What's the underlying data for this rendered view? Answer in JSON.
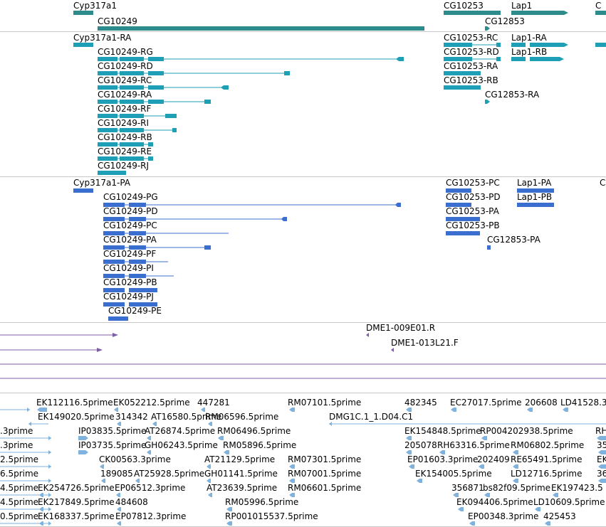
{
  "colors": {
    "gene": "#2e8b8b",
    "transcript": "#1f9fb5",
    "protein": "#3a6fd0",
    "clone": "#7e5ea6",
    "est": "#7fb2dc",
    "separator": "#c8c8c8"
  },
  "genes": [
    {
      "name": "Cyp317a1"
    },
    {
      "name": "CG10249"
    },
    {
      "name": "CG10253"
    },
    {
      "name": "Lap1"
    },
    {
      "name": "CG12853"
    }
  ],
  "transcripts": [
    "Cyp317a1-RA",
    "CG10249-RG",
    "CG10249-RD",
    "CG10249-RC",
    "CG10249-RA",
    "CG10249-RF",
    "CG10249-RI",
    "CG10249-RB",
    "CG10249-RE",
    "CG10249-RJ",
    "CG10253-RC",
    "CG10253-RD",
    "CG10253-RA",
    "CG10253-RB",
    "CG12853-RA",
    "Lap1-RA",
    "Lap1-RB"
  ],
  "proteins": [
    "Cyp317a1-PA",
    "CG10249-PG",
    "CG10249-PD",
    "CG10249-PC",
    "CG10249-PA",
    "CG10249-PF",
    "CG10249-PI",
    "CG10249-PB",
    "CG10249-PJ",
    "CG10249-PE",
    "CG10253-PC",
    "CG10253-PD",
    "CG10253-PA",
    "CG10253-PB",
    "CG12853-PA",
    "Lap1-PA",
    "Lap1-PB"
  ],
  "clones": [
    "DME1-009E01.R",
    "DME1-013L21.F"
  ],
  "est_labels": [
    "EK112116.5prime",
    "EK052212.5prime",
    "447281",
    "RM07101.5prime",
    "482345",
    "EC27017.5prime",
    "206608",
    "LD41528.3",
    "EK149020.5prime",
    "314342",
    "AT16580.5prime",
    "RM06596.5prime",
    "DMG1C.1_1.D04.C1",
    ".3prime",
    "IP03835.5prime",
    "AT26874.5prime",
    "RM06496.5prime",
    "EK154848.5prime",
    "RP004202938.5prime",
    "RH",
    ".3prime",
    "IP03735.5prime",
    "GH06243.5prime",
    "RM05896.5prime",
    "205078",
    "RH63316.5prime",
    "RM06802.5prime",
    "35",
    "2.5prime",
    "CK00563.3prime",
    "AT21129.5prime",
    "RM07301.5prime",
    "EP01603.3prime",
    "202409",
    "RE65491.5prime",
    "EK",
    "6.5prime",
    "189085",
    "AT25928.5prime",
    "GH01141.5prime",
    "RM07001.5prime",
    "EK154005.5prime",
    "LD12716.5prime",
    "36",
    "4.5prime",
    "EK254726.5prime",
    "EP06512.3prime",
    "AT23639.5prime",
    "RM06601.5prime",
    "356871",
    "bs82f09.5prime",
    "EK197423.5",
    "4.5prime",
    "EK217849.5prime",
    "484608",
    "RM05996.5prime",
    "EK094406.5prime",
    "LD10609.5prime",
    "0.5prime",
    "EK168337.5prime",
    "EP07812.3prime",
    "RP001015537.5prime",
    "EP00348.3prime",
    "425453"
  ],
  "edge_labels": [
    "C",
    "C"
  ]
}
